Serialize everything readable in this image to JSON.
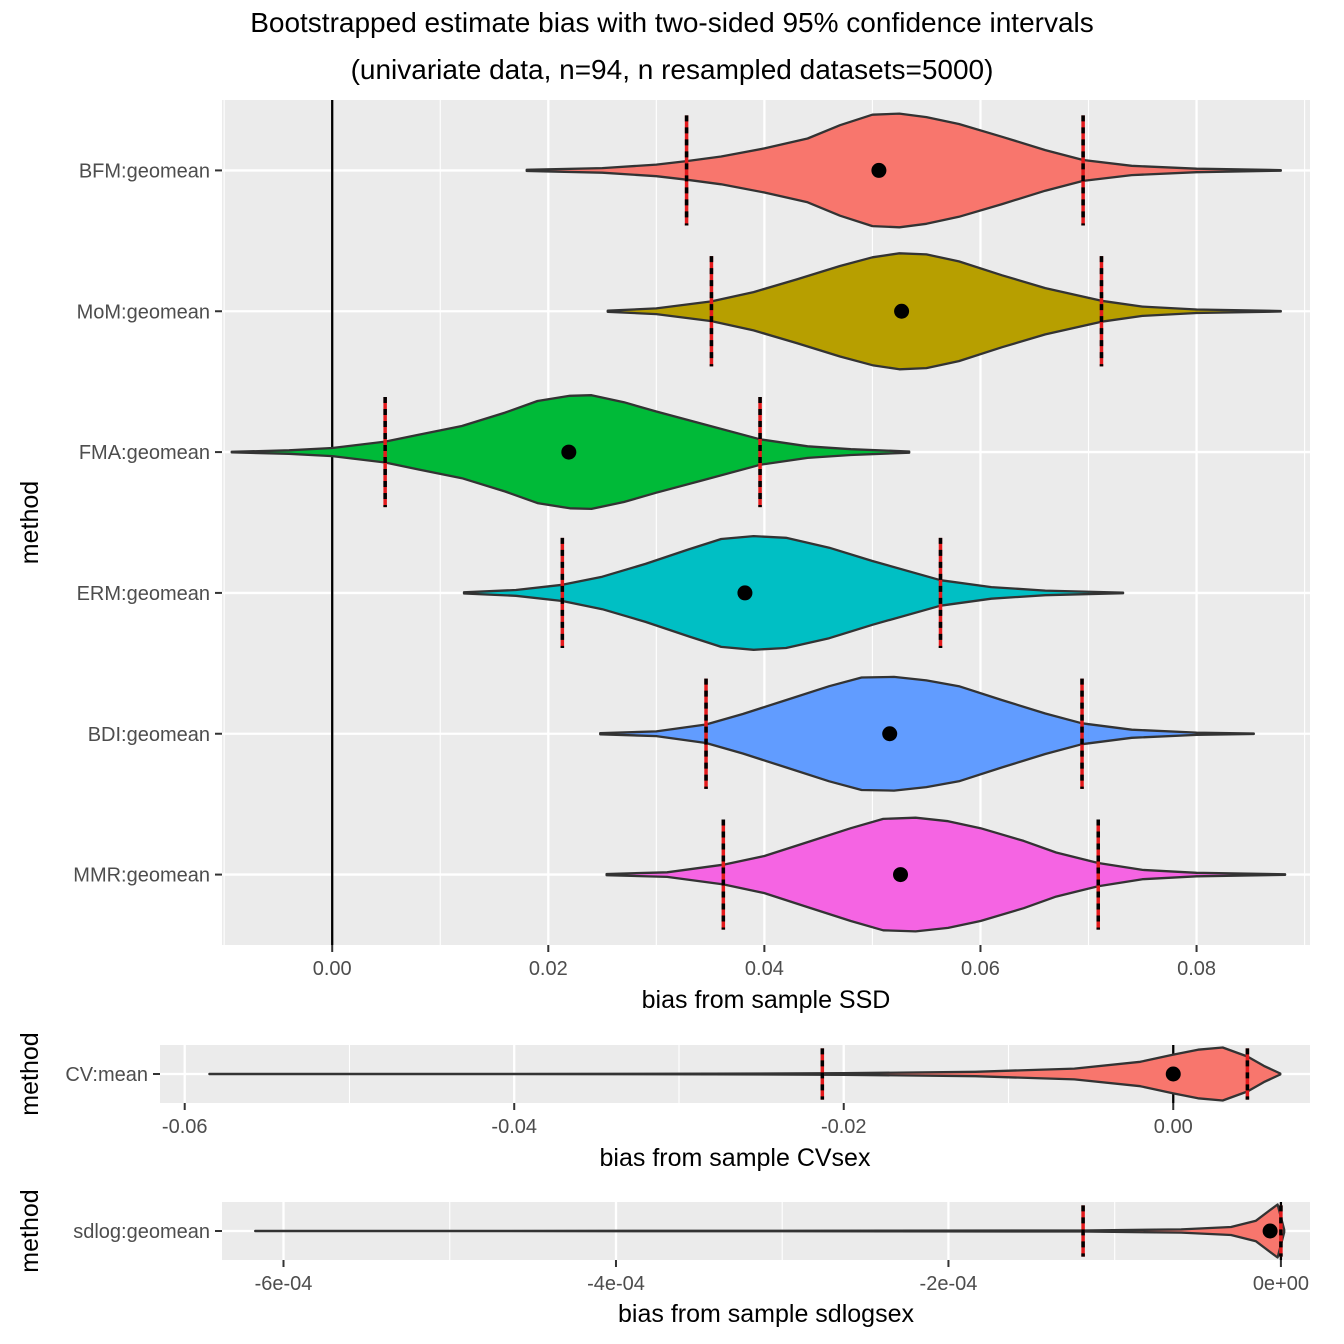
{
  "title_line1": "Bootstrapped estimate bias with two-sided 95% confidence intervals",
  "title_line2": "(univariate data, n=94, n resampled datasets=5000)",
  "colors": {
    "panel_bg": "#EBEBEB",
    "grid": "#FFFFFF",
    "outline": "#333333",
    "ci_red": "#E41A1C",
    "ci_black": "#000000",
    "point": "#000000",
    "zero_line": "#000000",
    "tick_text": "#4D4D4D"
  },
  "chart_data": [
    {
      "type": "violin",
      "xlabel": "bias from sample SSD",
      "ylabel": "method",
      "xlim": [
        -0.0102,
        0.0905
      ],
      "x_ticks": [
        0.0,
        0.02,
        0.04,
        0.06,
        0.08
      ],
      "x_tick_labels": [
        "0.00",
        "0.02",
        "0.04",
        "0.06",
        "0.08"
      ],
      "reference_line_x": 0,
      "series": [
        {
          "name": "BFM:geomean",
          "fill": "#F8766D",
          "min": 0.018,
          "max": 0.0878,
          "ci_low": 0.0328,
          "ci_high": 0.0695,
          "estimate": 0.0506,
          "density": [
            [
              0.018,
              0.01
            ],
            [
              0.025,
              0.04
            ],
            [
              0.03,
              0.1
            ],
            [
              0.0328,
              0.16
            ],
            [
              0.036,
              0.24
            ],
            [
              0.04,
              0.38
            ],
            [
              0.044,
              0.55
            ],
            [
              0.047,
              0.78
            ],
            [
              0.05,
              0.96
            ],
            [
              0.0525,
              0.98
            ],
            [
              0.055,
              0.92
            ],
            [
              0.058,
              0.8
            ],
            [
              0.062,
              0.58
            ],
            [
              0.066,
              0.35
            ],
            [
              0.0695,
              0.18
            ],
            [
              0.074,
              0.08
            ],
            [
              0.08,
              0.03
            ],
            [
              0.0878,
              0.005
            ]
          ]
        },
        {
          "name": "MoM:geomean",
          "fill": "#B79F00",
          "min": 0.0255,
          "max": 0.0878,
          "ci_low": 0.0351,
          "ci_high": 0.0712,
          "estimate": 0.0527,
          "density": [
            [
              0.0255,
              0.01
            ],
            [
              0.03,
              0.05
            ],
            [
              0.0351,
              0.17
            ],
            [
              0.039,
              0.33
            ],
            [
              0.043,
              0.55
            ],
            [
              0.047,
              0.78
            ],
            [
              0.05,
              0.93
            ],
            [
              0.0525,
              1.0
            ],
            [
              0.055,
              0.98
            ],
            [
              0.058,
              0.86
            ],
            [
              0.062,
              0.62
            ],
            [
              0.066,
              0.4
            ],
            [
              0.0712,
              0.18
            ],
            [
              0.075,
              0.08
            ],
            [
              0.08,
              0.03
            ],
            [
              0.0878,
              0.005
            ]
          ]
        },
        {
          "name": "FMA:geomean",
          "fill": "#00BA38",
          "min": -0.0093,
          "max": 0.0534,
          "ci_low": 0.0049,
          "ci_high": 0.0396,
          "estimate": 0.0219,
          "density": [
            [
              -0.0093,
              0.005
            ],
            [
              -0.004,
              0.03
            ],
            [
              0.0,
              0.07
            ],
            [
              0.0049,
              0.18
            ],
            [
              0.008,
              0.3
            ],
            [
              0.012,
              0.45
            ],
            [
              0.016,
              0.68
            ],
            [
              0.019,
              0.88
            ],
            [
              0.022,
              0.97
            ],
            [
              0.024,
              0.98
            ],
            [
              0.027,
              0.86
            ],
            [
              0.03,
              0.7
            ],
            [
              0.034,
              0.5
            ],
            [
              0.0396,
              0.22
            ],
            [
              0.044,
              0.1
            ],
            [
              0.048,
              0.05
            ],
            [
              0.0534,
              0.01
            ]
          ]
        },
        {
          "name": "ERM:geomean",
          "fill": "#00BFC4",
          "min": 0.0122,
          "max": 0.0732,
          "ci_low": 0.0213,
          "ci_high": 0.0563,
          "estimate": 0.0382,
          "density": [
            [
              0.0122,
              0.01
            ],
            [
              0.017,
              0.05
            ],
            [
              0.0213,
              0.14
            ],
            [
              0.025,
              0.28
            ],
            [
              0.029,
              0.5
            ],
            [
              0.033,
              0.75
            ],
            [
              0.036,
              0.93
            ],
            [
              0.039,
              0.98
            ],
            [
              0.042,
              0.95
            ],
            [
              0.046,
              0.78
            ],
            [
              0.05,
              0.55
            ],
            [
              0.0563,
              0.22
            ],
            [
              0.061,
              0.1
            ],
            [
              0.066,
              0.04
            ],
            [
              0.0732,
              0.005
            ]
          ]
        },
        {
          "name": "BDI:geomean",
          "fill": "#619CFF",
          "min": 0.0248,
          "max": 0.0853,
          "ci_low": 0.0346,
          "ci_high": 0.0694,
          "estimate": 0.0516,
          "density": [
            [
              0.0248,
              0.01
            ],
            [
              0.03,
              0.04
            ],
            [
              0.0346,
              0.16
            ],
            [
              0.038,
              0.34
            ],
            [
              0.042,
              0.58
            ],
            [
              0.046,
              0.82
            ],
            [
              0.049,
              0.97
            ],
            [
              0.052,
              0.98
            ],
            [
              0.055,
              0.92
            ],
            [
              0.058,
              0.82
            ],
            [
              0.062,
              0.58
            ],
            [
              0.066,
              0.35
            ],
            [
              0.0694,
              0.18
            ],
            [
              0.074,
              0.07
            ],
            [
              0.08,
              0.02
            ],
            [
              0.0853,
              0.005
            ]
          ]
        },
        {
          "name": "MMR:geomean",
          "fill": "#F564E3",
          "min": 0.0254,
          "max": 0.0882,
          "ci_low": 0.0362,
          "ci_high": 0.0709,
          "estimate": 0.0526,
          "density": [
            [
              0.0254,
              0.01
            ],
            [
              0.031,
              0.04
            ],
            [
              0.0362,
              0.17
            ],
            [
              0.04,
              0.32
            ],
            [
              0.044,
              0.56
            ],
            [
              0.048,
              0.8
            ],
            [
              0.051,
              0.96
            ],
            [
              0.054,
              0.98
            ],
            [
              0.057,
              0.92
            ],
            [
              0.06,
              0.8
            ],
            [
              0.064,
              0.58
            ],
            [
              0.067,
              0.38
            ],
            [
              0.0709,
              0.2
            ],
            [
              0.075,
              0.08
            ],
            [
              0.08,
              0.03
            ],
            [
              0.0882,
              0.005
            ]
          ]
        }
      ]
    },
    {
      "type": "violin",
      "xlabel": "bias from sample CVsex",
      "ylabel": "method",
      "xlim": [
        -0.0615,
        0.0083
      ],
      "x_ticks": [
        -0.06,
        -0.04,
        -0.02,
        0.0
      ],
      "x_tick_labels": [
        "-0.06",
        "-0.04",
        "-0.02",
        "0.00"
      ],
      "reference_line_x": 0,
      "series": [
        {
          "name": "CV:mean",
          "fill": "#F8766D",
          "min": -0.0585,
          "max": 0.0065,
          "ci_low": -0.0213,
          "ci_high": 0.0045,
          "estimate": 0.0,
          "density": [
            [
              -0.0585,
              0.002
            ],
            [
              -0.04,
              0.004
            ],
            [
              -0.028,
              0.01
            ],
            [
              -0.02,
              0.03
            ],
            [
              -0.012,
              0.08
            ],
            [
              -0.006,
              0.2
            ],
            [
              -0.002,
              0.45
            ],
            [
              0.0,
              0.72
            ],
            [
              0.0015,
              0.9
            ],
            [
              0.003,
              0.98
            ],
            [
              0.0045,
              0.65
            ],
            [
              0.0055,
              0.3
            ],
            [
              0.0065,
              0.02
            ]
          ]
        }
      ]
    },
    {
      "type": "violin",
      "xlabel": "bias from sample sdlogsex",
      "ylabel": "method",
      "xlim": [
        -0.000637,
        1.75e-05
      ],
      "x_ticks": [
        -0.0006,
        -0.0004,
        -0.0002,
        0.0
      ],
      "x_tick_labels": [
        "-6e-04",
        "-4e-04",
        "-2e-04",
        "0e+00"
      ],
      "reference_line_x": 0,
      "series": [
        {
          "name": "sdlog:geomean",
          "fill": "#F8766D",
          "min": -0.000617,
          "max": 2e-06,
          "ci_low": -0.000119,
          "ci_high": 0.0,
          "estimate": -6.5e-06,
          "density": [
            [
              -0.000617,
              0.003
            ],
            [
              -0.0003,
              0.006
            ],
            [
              -0.00012,
              0.02
            ],
            [
              -6e-05,
              0.06
            ],
            [
              -3e-05,
              0.15
            ],
            [
              -1.5e-05,
              0.38
            ],
            [
              -6e-06,
              0.8
            ],
            [
              -2e-06,
              0.98
            ],
            [
              2e-06,
              0.05
            ]
          ]
        }
      ]
    }
  ]
}
